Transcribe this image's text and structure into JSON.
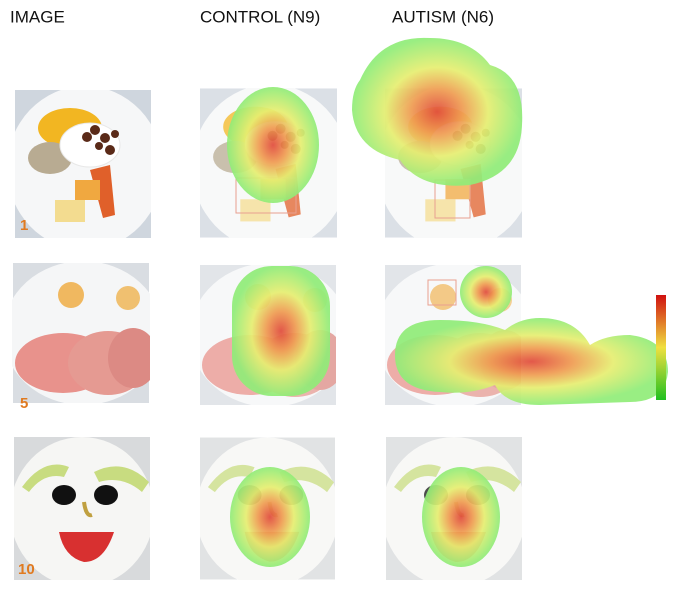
{
  "headers": [
    "IMAGE",
    "CONTROL (N9)",
    "AUTISM (N6)"
  ],
  "rows": [
    {
      "label": "1"
    },
    {
      "label": "5"
    },
    {
      "label": "10"
    }
  ]
}
